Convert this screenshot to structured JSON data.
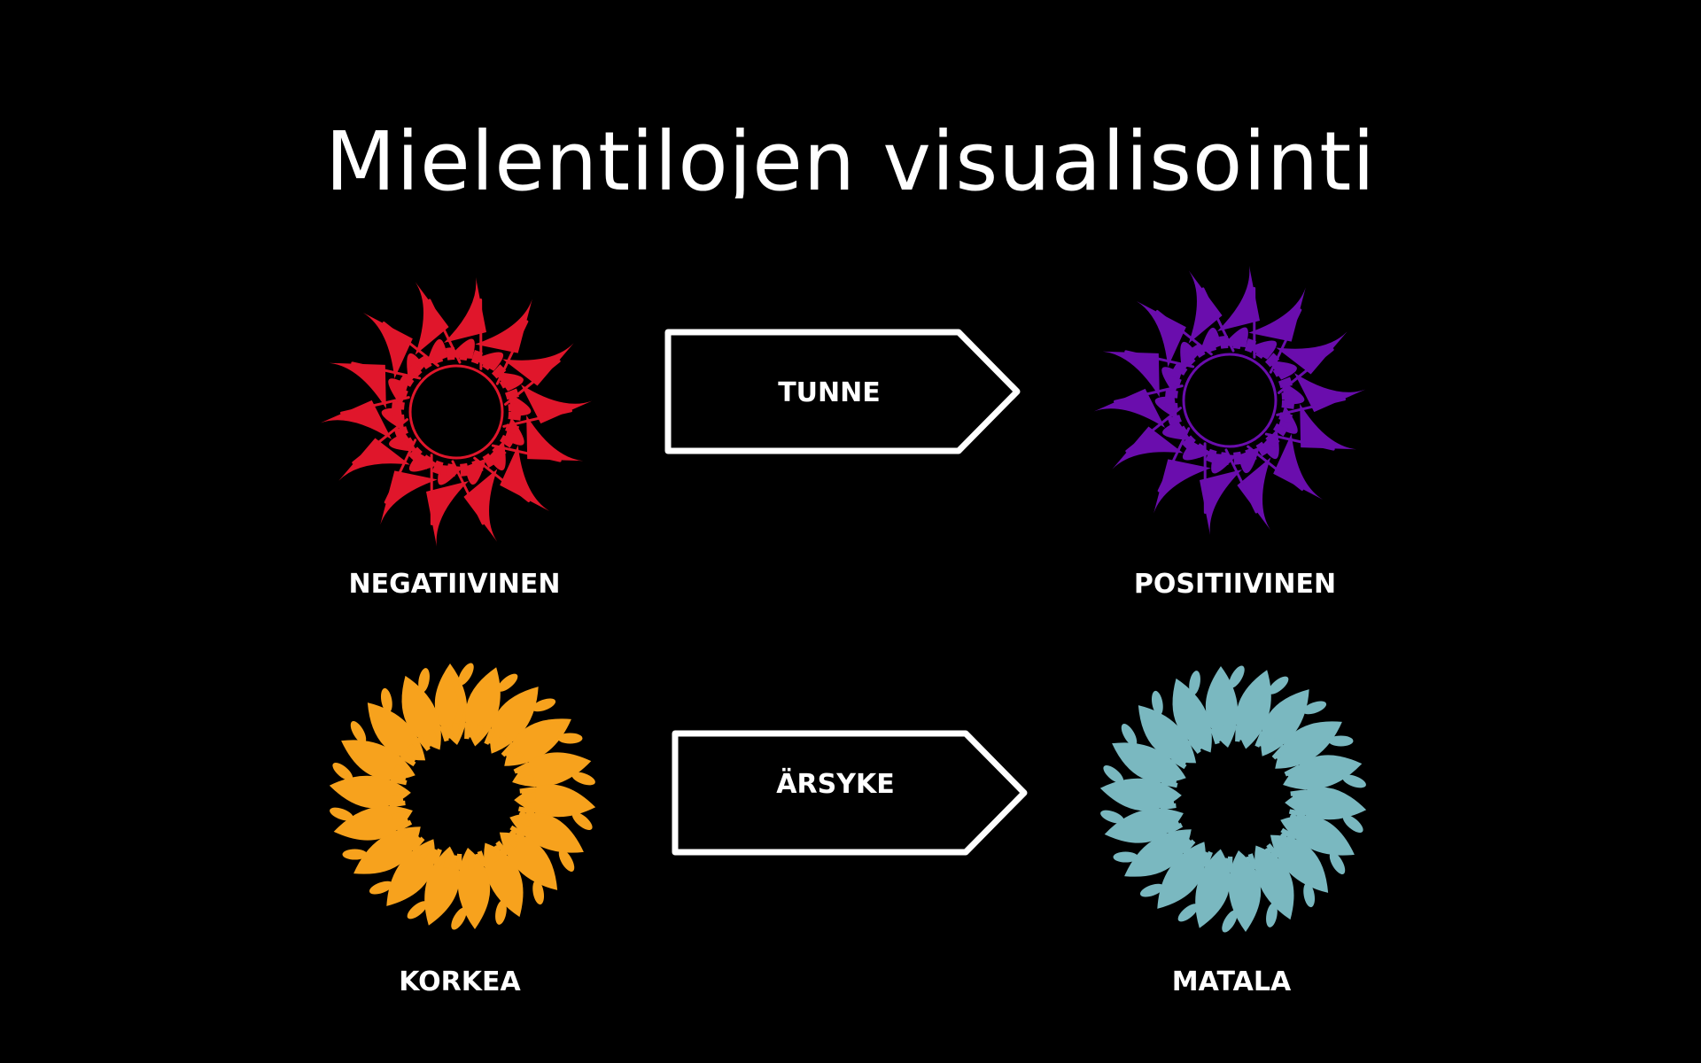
{
  "title": "Mielentilojen visualisointi",
  "rows": [
    {
      "arrow_label": "TUNNE",
      "left": {
        "label": "NEGATIIVINEN",
        "color": "#e0162b",
        "style": "pointed"
      },
      "right": {
        "label": "POSITIIVINEN",
        "color": "#6a0dad",
        "style": "pointed"
      }
    },
    {
      "arrow_label": "ÄRSYKE",
      "left": {
        "label": "KORKEA",
        "color": "#f7a21d",
        "style": "swirl"
      },
      "right": {
        "label": "MATALA",
        "color": "#7ab8c0",
        "style": "swirl"
      }
    }
  ],
  "colors": {
    "background": "#000000",
    "text": "#ffffff",
    "arrow_outline": "#ffffff"
  },
  "icons": {
    "arrow": "pentagon-arrow-right",
    "mandala": "flower-mandala"
  }
}
